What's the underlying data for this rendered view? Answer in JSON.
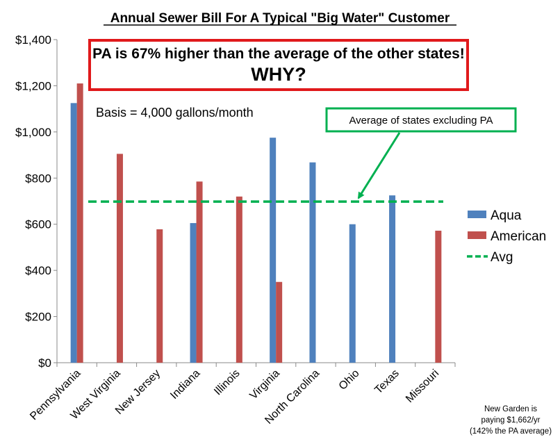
{
  "chart_data": {
    "type": "bar",
    "title": "Annual Sewer Bill For A Typical \"Big Water\" Customer",
    "xlabel": "",
    "ylabel": "",
    "ylim": [
      0,
      1400
    ],
    "ytick_values": [
      0,
      200,
      400,
      600,
      800,
      1000,
      1200,
      1400
    ],
    "ytick_labels": [
      "$0",
      "$200",
      "$400",
      "$600",
      "$800",
      "$1,000",
      "$1,200",
      "$1,400"
    ],
    "categories": [
      "Pennsylvania",
      "West Virginia",
      "New Jersey",
      "Indiana",
      "Illinois",
      "Virginia",
      "North Carolina",
      "Ohio",
      "Texas",
      "Missouri"
    ],
    "series": [
      {
        "name": "Aqua",
        "color": "#4F81BD",
        "values": [
          1125,
          null,
          null,
          605,
          null,
          975,
          868,
          600,
          725,
          null
        ]
      },
      {
        "name": "American",
        "color": "#C0504D",
        "values": [
          1210,
          905,
          578,
          785,
          720,
          350,
          null,
          null,
          null,
          572
        ]
      }
    ],
    "reference_line": {
      "name": "Avg",
      "value": 698,
      "color": "#00B050",
      "style": "dashed"
    },
    "legend_position": "right",
    "grid": false
  },
  "annotations": {
    "callout_line1": "PA is 67% higher than the average of the other states!",
    "callout_line2": "WHY?",
    "callout_border_color": "#E0191B",
    "basis": "Basis = 4,000 gallons/month",
    "avg_label": "Average of states excluding PA",
    "avg_label_border_color": "#00B050",
    "footnote_line1": "New Garden is",
    "footnote_line2": "paying $1,662/yr",
    "footnote_line3": "(142% the PA average)"
  }
}
